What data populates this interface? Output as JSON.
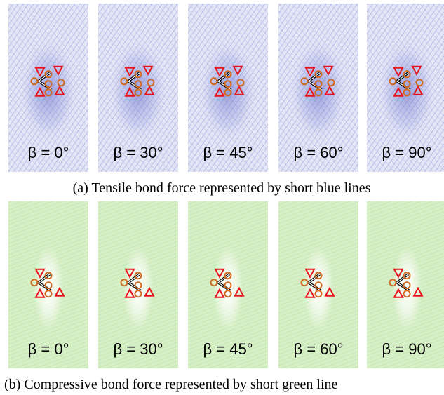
{
  "figure": {
    "row_a": {
      "labels": [
        "β = 0°",
        "β = 30°",
        "β = 45°",
        "β = 60°",
        "β = 90°"
      ],
      "caption": "(a) Tensile bond force represented by short blue lines"
    },
    "row_b": {
      "labels": [
        "β = 0°",
        "β = 30°",
        "β = 45°",
        "β = 60°",
        "β = 90°"
      ],
      "caption": "(b) Compressive bond force represented by short green line"
    }
  }
}
